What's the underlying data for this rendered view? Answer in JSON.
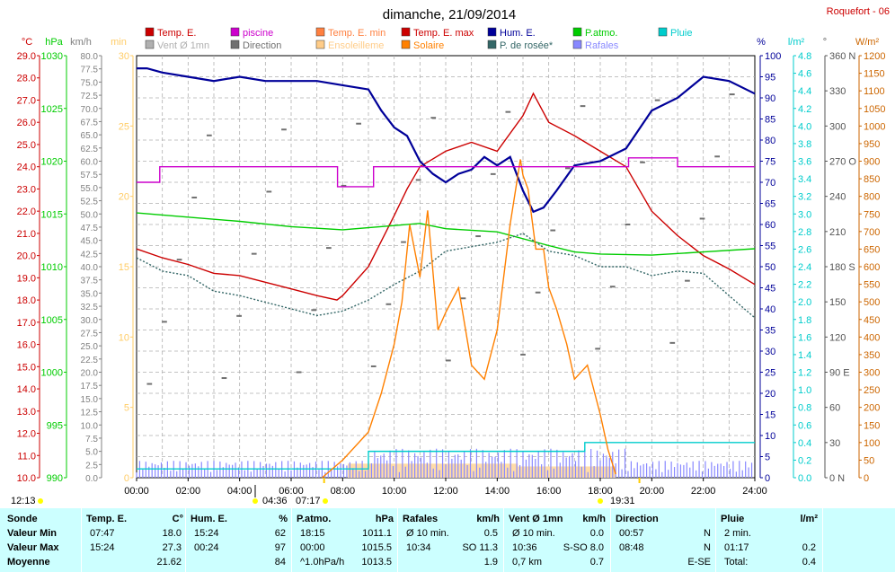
{
  "title": "dimanche, 21/09/2014",
  "station": "Roquefort - 06",
  "legend": [
    {
      "label": "Temp. E.",
      "color": "#cc0000"
    },
    {
      "label": "piscine",
      "color": "#cc00cc"
    },
    {
      "label": "Temp. E. min",
      "color": "#ff8040"
    },
    {
      "label": "Temp. E. max",
      "color": "#cc0000"
    },
    {
      "label": "Hum. E.",
      "color": "#000099"
    },
    {
      "label": "P.atmo.",
      "color": "#00cc00"
    },
    {
      "label": "Pluie",
      "color": "#00cccc"
    },
    {
      "label": "Vent Ø 1mn",
      "color": "#b0b0b0"
    },
    {
      "label": "Direction",
      "color": "#707070"
    },
    {
      "label": "Ensoleilleme",
      "color": "#ffcc88"
    },
    {
      "label": "Solaire",
      "color": "#ff8000"
    },
    {
      "label": "P. de rosée*",
      "color": "#336666"
    },
    {
      "label": "Rafales",
      "color": "#8888ff"
    }
  ],
  "axis_units": {
    "temp": "°C",
    "press": "hPa",
    "wind": "km/h",
    "min": "min",
    "hum": "%",
    "rain": "l/m²",
    "dir": "°",
    "solar": "W/m²"
  },
  "axes": {
    "temp": [
      10.0,
      29.0
    ],
    "press": [
      990,
      1030
    ],
    "wind": [
      0,
      80
    ],
    "min": [
      0,
      30
    ],
    "hum": [
      0,
      100
    ],
    "rain": [
      0,
      4.8
    ],
    "dir": [
      0,
      360
    ],
    "solar": [
      0,
      1200
    ]
  },
  "axis_ticks": {
    "temp": [
      "10.0",
      "11.0",
      "12.0",
      "13.0",
      "14.0",
      "15.0",
      "16.0",
      "17.0",
      "18.0",
      "19.0",
      "20.0",
      "21.0",
      "22.0",
      "23.0",
      "24.0",
      "25.0",
      "26.0",
      "27.0",
      "28.0",
      "29.0"
    ],
    "press": [
      "990",
      "995",
      "1000",
      "1005",
      "1010",
      "1015",
      "1020",
      "1025",
      "1030"
    ],
    "wind": [
      "0.0",
      "2.5",
      "5.0",
      "7.5",
      "10.0",
      "12.5",
      "15.0",
      "17.5",
      "20.0",
      "22.5",
      "25.0",
      "27.5",
      "30.0",
      "32.5",
      "35.0",
      "37.5",
      "40.0",
      "42.5",
      "45.0",
      "47.5",
      "50.0",
      "52.5",
      "55.0",
      "57.5",
      "60.0",
      "62.5",
      "65.0",
      "67.5",
      "70.0",
      "72.5",
      "75.0",
      "77.5",
      "80.0"
    ],
    "min": [
      "0",
      "5",
      "10",
      "15",
      "20",
      "25",
      "30"
    ],
    "hum": [
      "0",
      "5",
      "10",
      "15",
      "20",
      "25",
      "30",
      "35",
      "40",
      "45",
      "50",
      "55",
      "60",
      "65",
      "70",
      "75",
      "80",
      "85",
      "90",
      "95",
      "100"
    ],
    "rain": [
      "0.0",
      "0.2",
      "0.4",
      "0.6",
      "0.8",
      "1.0",
      "1.2",
      "1.4",
      "1.6",
      "1.8",
      "2.0",
      "2.2",
      "2.4",
      "2.6",
      "2.8",
      "3.0",
      "3.2",
      "3.4",
      "3.6",
      "3.8",
      "4.0",
      "4.2",
      "4.4",
      "4.6",
      "4.8"
    ],
    "dir": [
      "0 N",
      "30",
      "60",
      "90 E",
      "120",
      "150",
      "180 S",
      "210",
      "240",
      "270 O",
      "300",
      "330",
      "360 N"
    ],
    "solar": [
      "0",
      "50",
      "100",
      "150",
      "200",
      "250",
      "300",
      "350",
      "400",
      "450",
      "500",
      "550",
      "600",
      "650",
      "700",
      "750",
      "800",
      "850",
      "900",
      "950",
      "1000",
      "1050",
      "1100",
      "1150",
      "1200"
    ]
  },
  "x_ticks": [
    "00:00",
    "02:00",
    "04:00",
    "06:00",
    "08:00",
    "10:00",
    "12:00",
    "14:00",
    "16:00",
    "18:00",
    "20:00",
    "22:00",
    "24:00"
  ],
  "x_range": [
    0,
    24
  ],
  "sun_marks": {
    "left": "12:13",
    "moonset": "04:36",
    "sunrise": "07:17",
    "sunset": "19:31"
  },
  "chart_data": {
    "type": "line",
    "x_unit": "hours",
    "series": [
      {
        "name": "Temp. E.",
        "axis": "temp",
        "color": "#cc0000",
        "x": [
          0,
          1,
          2,
          3,
          4,
          5,
          6,
          7,
          7.78,
          8,
          9,
          10,
          10.5,
          11,
          12,
          13,
          14,
          15,
          15.4,
          16,
          17,
          18,
          19,
          20,
          21,
          22,
          23,
          24
        ],
        "values": [
          20.3,
          19.9,
          19.6,
          19.2,
          19.1,
          18.8,
          18.5,
          18.2,
          18.0,
          18.2,
          19.5,
          21.8,
          23.0,
          24.0,
          24.7,
          25.1,
          24.7,
          26.3,
          27.3,
          26.0,
          25.4,
          24.7,
          24.0,
          22.0,
          20.9,
          20.0,
          19.4,
          18.7
        ]
      },
      {
        "name": "Hum. E.",
        "axis": "hum",
        "color": "#000099",
        "x": [
          0,
          0.4,
          1,
          2,
          3,
          4,
          5,
          6,
          7,
          8,
          9,
          9.5,
          10,
          10.5,
          11,
          11.5,
          12,
          12.5,
          13,
          13.5,
          14,
          14.5,
          15,
          15.4,
          15.8,
          16.3,
          17,
          18,
          19,
          20,
          21,
          22,
          23,
          24
        ],
        "values": [
          97,
          97,
          96,
          95,
          94,
          95,
          94,
          94,
          94,
          93,
          92,
          87,
          83,
          81,
          75,
          72,
          70,
          72,
          73,
          76,
          74,
          76,
          68,
          63,
          64,
          68,
          74,
          75,
          78,
          87,
          90,
          95,
          94,
          91
        ]
      },
      {
        "name": "P.atmo.",
        "axis": "press",
        "color": "#00cc00",
        "x": [
          0,
          2,
          4,
          6,
          8,
          10,
          11,
          12,
          14,
          16,
          17,
          18,
          20,
          22,
          24
        ],
        "values": [
          1015.1,
          1014.7,
          1014.3,
          1013.8,
          1013.5,
          1013.9,
          1014.1,
          1013.6,
          1013.3,
          1012.0,
          1011.4,
          1011.2,
          1011.1,
          1011.4,
          1011.7
        ]
      },
      {
        "name": "P. de rosée*",
        "axis": "temp",
        "color": "#336666",
        "x": [
          0,
          1,
          2,
          3,
          4,
          5,
          6,
          7,
          8,
          9,
          10,
          11,
          12,
          13,
          14,
          15,
          16,
          17,
          18,
          19,
          20,
          21,
          22,
          23,
          24
        ],
        "values": [
          19.9,
          19.3,
          19.1,
          18.4,
          18.2,
          17.9,
          17.6,
          17.3,
          17.5,
          18.0,
          18.7,
          19.3,
          20.2,
          20.4,
          20.6,
          21.0,
          20.2,
          20.0,
          19.5,
          19.5,
          19.1,
          19.3,
          19.2,
          18.2,
          17.2
        ]
      },
      {
        "name": "Solaire",
        "axis": "solar",
        "color": "#ff8000",
        "x": [
          7.2,
          8,
          9,
          9.5,
          10,
          10.3,
          10.6,
          11,
          11.3,
          11.7,
          12,
          12.5,
          13,
          13.5,
          14,
          14.5,
          14.9,
          15,
          15.2,
          15.5,
          15.8,
          16,
          16.3,
          16.7,
          17,
          17.5,
          18,
          18.3,
          18.6
        ],
        "values": [
          0,
          50,
          130,
          240,
          380,
          500,
          720,
          570,
          760,
          420,
          470,
          540,
          320,
          280,
          420,
          720,
          905,
          860,
          820,
          650,
          650,
          540,
          480,
          380,
          280,
          320,
          180,
          80,
          10
        ]
      },
      {
        "name": "piscine",
        "axis": "temp",
        "color": "#cc00cc",
        "x": [
          0,
          0.9,
          0.9,
          7.8,
          7.8,
          9.2,
          9.2,
          19.1,
          19.1,
          21.0,
          21.0,
          24
        ],
        "values": [
          23.3,
          23.3,
          24.0,
          24.0,
          23.1,
          23.1,
          24.0,
          24.0,
          24.4,
          24.4,
          24.0,
          24.0
        ]
      }
    ]
  },
  "stats": {
    "headers": [
      {
        "label": "Sonde",
        "unit": ""
      },
      {
        "label": "Temp. E.",
        "unit": "°C"
      },
      {
        "label": "Hum. E.",
        "unit": "%"
      },
      {
        "label": "P.atmo.",
        "unit": "hPa"
      },
      {
        "label": "Rafales",
        "unit": "km/h"
      },
      {
        "label": "Vent Ø 1mn",
        "unit": "km/h"
      },
      {
        "label": "Direction",
        "unit": ""
      },
      {
        "label": "Pluie",
        "unit": "l/m²"
      }
    ],
    "rows": [
      {
        "label": "Valeur Min",
        "cells": [
          {
            "a": "07:47",
            "b": "18.0"
          },
          {
            "a": "15:24",
            "b": "62"
          },
          {
            "a": "18:15",
            "b": "1011.1"
          },
          {
            "a": "Ø 10 min.",
            "b": "0.5"
          },
          {
            "a": "Ø 10 min.",
            "b": "0.0"
          },
          {
            "a": "00:57",
            "b": "N"
          },
          {
            "a": "2 min.",
            "b": ""
          }
        ]
      },
      {
        "label": "Valeur Max",
        "cells": [
          {
            "a": "15:24",
            "b": "27.3"
          },
          {
            "a": "00:24",
            "b": "97"
          },
          {
            "a": "00:00",
            "b": "1015.5"
          },
          {
            "a": "10:34",
            "b": "SO 11.3"
          },
          {
            "a": "10:36",
            "b": "S-SO 8.0"
          },
          {
            "a": "08:48",
            "b": "N"
          },
          {
            "a": "01:17",
            "b": "0.2"
          }
        ]
      },
      {
        "label": "Moyenne",
        "cells": [
          {
            "a": "",
            "b": "21.62"
          },
          {
            "a": "",
            "b": "84"
          },
          {
            "a": "^1.0hPa/h",
            "b": "1013.5"
          },
          {
            "a": "",
            "b": "1.9"
          },
          {
            "a": "0,7 km",
            "b": "0.7"
          },
          {
            "a": "",
            "b": "E-SE"
          },
          {
            "a": "Total:",
            "b": "0.4"
          }
        ]
      }
    ]
  }
}
